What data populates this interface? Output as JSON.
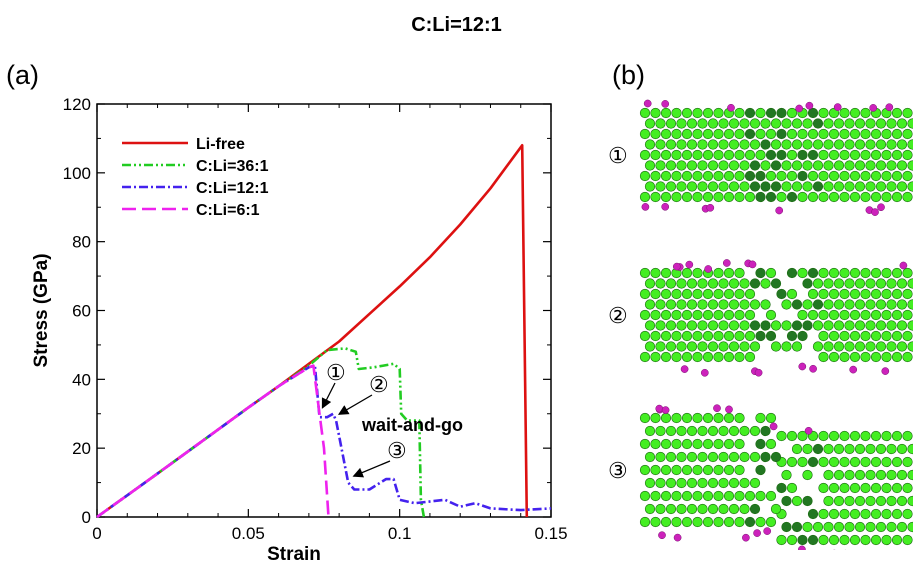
{
  "figure_title": "C:Li=12:1",
  "panel_a_label": "(a)",
  "panel_b_label": "(b)",
  "colors": {
    "li_free": "#dd1111",
    "c_li_36_1": "#22cc22",
    "c_li_12_1": "#4422ee",
    "c_li_6_1": "#ee22ee",
    "nanotube": "#44ee22",
    "nanotube_dark": "#227722",
    "lithium": "#cc22bb"
  },
  "chart_data": {
    "type": "line",
    "title": "",
    "xlabel": "Strain",
    "ylabel": "Stress (GPa)",
    "xlim": [
      0,
      0.15
    ],
    "ylim": [
      0,
      120
    ],
    "xticks": [
      0,
      0.05,
      0.1,
      0.15
    ],
    "xtick_labels": [
      "0",
      "0.05",
      "0.1",
      "0.15"
    ],
    "yticks": [
      0,
      20,
      40,
      60,
      80,
      100,
      120
    ],
    "ytick_labels": [
      "0",
      "20",
      "40",
      "60",
      "80",
      "100",
      "120"
    ],
    "grid": false,
    "legend_position": "top-left",
    "series": [
      {
        "name": "Li-free",
        "style": "solid",
        "color": "#dd1111",
        "x": [
          0,
          0.01,
          0.02,
          0.03,
          0.04,
          0.05,
          0.06,
          0.07,
          0.08,
          0.09,
          0.1,
          0.11,
          0.12,
          0.13,
          0.1405,
          0.142
        ],
        "y": [
          0,
          6.3,
          12.6,
          19,
          25.4,
          31.8,
          38,
          44.5,
          51,
          59,
          67,
          75.5,
          85,
          95.5,
          108,
          0
        ]
      },
      {
        "name": "C:Li=36:1",
        "style": "dash-dot-dot",
        "color": "#22cc22",
        "x": [
          0,
          0.01,
          0.02,
          0.03,
          0.04,
          0.05,
          0.06,
          0.07,
          0.076,
          0.082,
          0.0855,
          0.0865,
          0.0915,
          0.098,
          0.1,
          0.1005,
          0.1025,
          0.1065,
          0.107,
          0.108
        ],
        "y": [
          0,
          6.3,
          12.6,
          19,
          25.4,
          31.8,
          38,
          44,
          48.5,
          49,
          48,
          43,
          43.5,
          44.5,
          43,
          30,
          28,
          28,
          5,
          0
        ]
      },
      {
        "name": "C:Li=12:1",
        "style": "dash-dot",
        "color": "#4422ee",
        "x": [
          0,
          0.01,
          0.02,
          0.03,
          0.04,
          0.05,
          0.06,
          0.07,
          0.072,
          0.0735,
          0.076,
          0.078,
          0.079,
          0.083,
          0.085,
          0.09,
          0.0955,
          0.098,
          0.1,
          0.105,
          0.115,
          0.12,
          0.125,
          0.13,
          0.14,
          0.15
        ],
        "y": [
          0,
          6.3,
          12.6,
          19,
          25.4,
          31.8,
          38,
          43.5,
          44,
          29,
          29,
          30,
          28,
          10,
          8,
          8,
          11,
          11,
          5,
          4,
          5,
          3,
          4,
          2.5,
          2,
          2.5
        ]
      },
      {
        "name": "C:Li=6:1",
        "style": "long-dash",
        "color": "#ee22ee",
        "x": [
          0,
          0.01,
          0.02,
          0.03,
          0.04,
          0.05,
          0.06,
          0.07,
          0.0715,
          0.0735,
          0.075,
          0.0765
        ],
        "y": [
          0,
          6.3,
          12.6,
          19,
          25.4,
          31.8,
          38,
          43.5,
          44,
          30,
          20,
          0
        ]
      }
    ],
    "annotations": [
      {
        "text": "①",
        "x": 0.0735,
        "y": 30
      },
      {
        "text": "②",
        "x": 0.079,
        "y": 29
      },
      {
        "text": "③",
        "x": 0.0835,
        "y": 11
      },
      {
        "text": "wait-and-go"
      }
    ]
  },
  "snapshots": [
    {
      "label": "①"
    },
    {
      "label": "②"
    },
    {
      "label": "③"
    }
  ]
}
